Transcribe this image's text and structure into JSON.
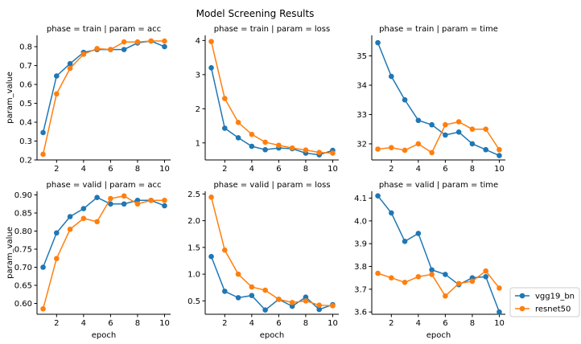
{
  "chart_data": {
    "type": "line",
    "title": "Model Screening Results",
    "legend": {
      "position": "lower-right",
      "entries": [
        "vgg19_bn",
        "resnet50"
      ]
    },
    "colors": {
      "vgg19_bn": "#1f77b4",
      "resnet50": "#ff7f0e"
    },
    "grid": false,
    "panels": [
      {
        "title": "phase = train | param = acc",
        "xlabel": "",
        "ylabel": "param_value",
        "xlim": [
          0.55,
          10.45
        ],
        "ylim": [
          0.2,
          0.86
        ],
        "xticks": [
          2,
          4,
          6,
          8,
          10
        ],
        "xtick_labels": [
          "2",
          "4",
          "6",
          "8",
          "10"
        ],
        "yticks": [
          0.2,
          0.3,
          0.4,
          0.5,
          0.6,
          0.7,
          0.8
        ],
        "ytick_labels": [
          "0.2",
          "0.3",
          "0.4",
          "0.5",
          "0.6",
          "0.7",
          "0.8"
        ],
        "x": [
          1,
          2,
          3,
          4,
          5,
          6,
          7,
          8,
          9,
          10
        ],
        "series": [
          {
            "name": "vgg19_bn",
            "values": [
              0.345,
              0.645,
              0.71,
              0.77,
              0.785,
              0.785,
              0.785,
              0.82,
              0.83,
              0.8
            ]
          },
          {
            "name": "resnet50",
            "values": [
              0.23,
              0.55,
              0.685,
              0.76,
              0.79,
              0.785,
              0.825,
              0.825,
              0.83,
              0.83
            ]
          }
        ]
      },
      {
        "title": "phase = train | param = loss",
        "xlabel": "",
        "ylabel": "",
        "xlim": [
          0.55,
          10.45
        ],
        "ylim": [
          0.5,
          4.15
        ],
        "xticks": [
          2,
          4,
          6,
          8,
          10
        ],
        "xtick_labels": [
          "2",
          "4",
          "6",
          "8",
          "10"
        ],
        "yticks": [
          1,
          2,
          3,
          4
        ],
        "ytick_labels": [
          "1",
          "2",
          "3",
          "4"
        ],
        "x": [
          1,
          2,
          3,
          4,
          5,
          6,
          7,
          8,
          9,
          10
        ],
        "series": [
          {
            "name": "vgg19_bn",
            "values": [
              3.2,
              1.43,
              1.15,
              0.9,
              0.8,
              0.85,
              0.83,
              0.7,
              0.65,
              0.78
            ]
          },
          {
            "name": "resnet50",
            "values": [
              3.97,
              2.3,
              1.6,
              1.25,
              1.02,
              0.93,
              0.85,
              0.79,
              0.72,
              0.7
            ]
          }
        ]
      },
      {
        "title": "phase = train | param = time",
        "xlabel": "",
        "ylabel": "",
        "xlim": [
          0.55,
          10.45
        ],
        "ylim": [
          31.45,
          35.7
        ],
        "xticks": [
          2,
          4,
          6,
          8,
          10
        ],
        "xtick_labels": [
          "2",
          "4",
          "6",
          "8",
          "10"
        ],
        "yticks": [
          32,
          33,
          34,
          35
        ],
        "ytick_labels": [
          "32",
          "33",
          "34",
          "35"
        ],
        "x": [
          1,
          2,
          3,
          4,
          5,
          6,
          7,
          8,
          9,
          10
        ],
        "series": [
          {
            "name": "vgg19_bn",
            "values": [
              35.45,
              34.3,
              33.5,
              32.8,
              32.65,
              32.3,
              32.4,
              32.0,
              31.8,
              31.6
            ]
          },
          {
            "name": "resnet50",
            "values": [
              31.82,
              31.87,
              31.78,
              32.0,
              31.7,
              32.65,
              32.75,
              32.5,
              32.5,
              31.8
            ]
          }
        ]
      },
      {
        "title": "phase = valid | param = acc",
        "xlabel": "epoch",
        "ylabel": "param_value",
        "xlim": [
          0.55,
          10.45
        ],
        "ylim": [
          0.57,
          0.91
        ],
        "xticks": [
          2,
          4,
          6,
          8,
          10
        ],
        "xtick_labels": [
          "2",
          "4",
          "6",
          "8",
          "10"
        ],
        "yticks": [
          0.6,
          0.65,
          0.7,
          0.75,
          0.8,
          0.85,
          0.9
        ],
        "ytick_labels": [
          "0.60",
          "0.65",
          "0.70",
          "0.75",
          "0.80",
          "0.85",
          "0.90"
        ],
        "x": [
          1,
          2,
          3,
          4,
          5,
          6,
          7,
          8,
          9,
          10
        ],
        "series": [
          {
            "name": "vgg19_bn",
            "values": [
              0.7,
              0.795,
              0.84,
              0.862,
              0.893,
              0.875,
              0.875,
              0.885,
              0.885,
              0.87
            ]
          },
          {
            "name": "resnet50",
            "values": [
              0.585,
              0.724,
              0.805,
              0.835,
              0.826,
              0.89,
              0.897,
              0.875,
              0.885,
              0.885
            ]
          }
        ]
      },
      {
        "title": "phase = valid | param = loss",
        "xlabel": "epoch",
        "ylabel": "",
        "xlim": [
          0.55,
          10.45
        ],
        "ylim": [
          0.25,
          2.55
        ],
        "xticks": [
          2,
          4,
          6,
          8,
          10
        ],
        "xtick_labels": [
          "2",
          "4",
          "6",
          "8",
          "10"
        ],
        "yticks": [
          0.5,
          1.0,
          1.5,
          2.0,
          2.5
        ],
        "ytick_labels": [
          "0.5",
          "1.0",
          "1.5",
          "2.0",
          "2.5"
        ],
        "x": [
          1,
          2,
          3,
          4,
          5,
          6,
          7,
          8,
          9,
          10
        ],
        "series": [
          {
            "name": "vgg19_bn",
            "values": [
              1.33,
              0.68,
              0.56,
              0.6,
              0.33,
              0.53,
              0.4,
              0.57,
              0.34,
              0.43
            ]
          },
          {
            "name": "resnet50",
            "values": [
              2.44,
              1.45,
              1.0,
              0.76,
              0.7,
              0.53,
              0.47,
              0.5,
              0.42,
              0.41
            ]
          }
        ]
      },
      {
        "title": "phase = valid | param = time",
        "xlabel": "epoch",
        "ylabel": "",
        "xlim": [
          0.55,
          10.45
        ],
        "ylim": [
          3.59,
          4.13
        ],
        "xticks": [
          2,
          4,
          6,
          8,
          10
        ],
        "xtick_labels": [
          "2",
          "4",
          "6",
          "8",
          "10"
        ],
        "yticks": [
          3.6,
          3.7,
          3.8,
          3.9,
          4.0,
          4.1
        ],
        "ytick_labels": [
          "3.6",
          "3.7",
          "3.8",
          "3.9",
          "4.0",
          "4.1"
        ],
        "x": [
          1,
          2,
          3,
          4,
          5,
          6,
          7,
          8,
          9,
          10
        ],
        "series": [
          {
            "name": "vgg19_bn",
            "values": [
              4.11,
              4.035,
              3.91,
              3.945,
              3.785,
              3.765,
              3.72,
              3.75,
              3.755,
              3.6
            ]
          },
          {
            "name": "resnet50",
            "values": [
              3.77,
              3.75,
              3.73,
              3.755,
              3.765,
              3.67,
              3.725,
              3.735,
              3.78,
              3.705
            ]
          }
        ]
      }
    ]
  }
}
